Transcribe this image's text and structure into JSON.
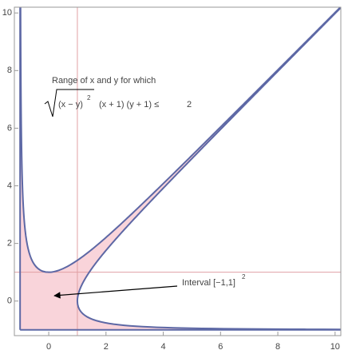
{
  "chart_data": {
    "type": "region",
    "annotation": "Range of x and y for which",
    "formula": {
      "diff": "(x − y)",
      "power": "2",
      "rest": "(x + 1) (y + 1) ≤",
      "bound": 2
    },
    "interval_label": {
      "text": "Interval [−1,1]",
      "power": "2"
    },
    "ref_lines": {
      "x": 1,
      "y": 1
    },
    "region_min": {
      "x": -1,
      "y": -1
    },
    "xlim": [
      -1.2,
      10.2
    ],
    "ylim": [
      -1.2,
      10.2
    ],
    "xticks": [
      0,
      2,
      4,
      6,
      8,
      10
    ],
    "yticks": [
      0,
      2,
      4,
      6,
      8,
      10
    ],
    "fill_color": "#f9d4da",
    "line_color": "#5d68a5",
    "ref_color": "#e0a0a4"
  }
}
